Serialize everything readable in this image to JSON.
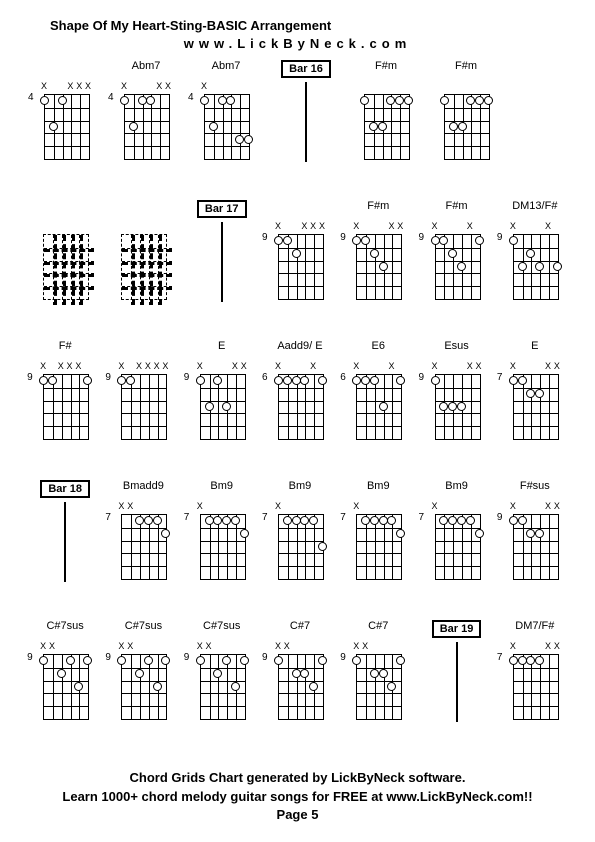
{
  "title": "Shape Of My Heart-Sting-BASIC Arrangement",
  "subtitle": "www.LickByNeck.com",
  "footer_line1": "Chord Grids Chart generated by LickByNeck software.",
  "footer_line2": "Learn 1000+ chord melody guitar songs for FREE at www.LickByNeck.com!!",
  "footer_line3": "Page 5",
  "rows": [
    [
      {
        "type": "chord",
        "label": "",
        "fret": "4",
        "marks": [
          "x",
          "",
          "",
          "x",
          "x",
          "x"
        ],
        "dots": [
          {
            "s": 1,
            "f": 0,
            "o": 1
          },
          {
            "s": 2,
            "f": 3
          },
          {
            "s": 3,
            "f": 0,
            "o": 1
          }
        ]
      },
      {
        "type": "chord",
        "label": "Abm7",
        "fret": "4",
        "marks": [
          "x",
          "",
          "",
          "",
          "x",
          "x"
        ],
        "dots": [
          {
            "s": 1,
            "f": 0,
            "o": 1
          },
          {
            "s": 2,
            "f": 3
          },
          {
            "s": 3,
            "f": 1
          },
          {
            "s": 4,
            "f": 1
          }
        ]
      },
      {
        "type": "chord",
        "label": "Abm7",
        "fret": "4",
        "marks": [
          "x",
          "",
          "",
          "",
          "",
          ""
        ],
        "dots": [
          {
            "s": 1,
            "f": 0,
            "o": 1
          },
          {
            "s": 2,
            "f": 3
          },
          {
            "s": 3,
            "f": 1
          },
          {
            "s": 4,
            "f": 1
          },
          {
            "s": 5,
            "f": 4
          },
          {
            "s": 6,
            "f": 4
          }
        ]
      },
      {
        "type": "bar",
        "label": "Bar 16"
      },
      {
        "type": "chord",
        "label": "F#m",
        "fret": "",
        "marks": [
          "",
          "",
          "",
          "",
          "",
          ""
        ],
        "dots": [
          {
            "s": 1,
            "f": 1
          },
          {
            "s": 2,
            "f": 3
          },
          {
            "s": 3,
            "f": 3
          },
          {
            "s": 4,
            "f": 1
          },
          {
            "s": 5,
            "f": 1
          },
          {
            "s": 6,
            "f": 1
          }
        ]
      },
      {
        "type": "chord",
        "label": "F#m",
        "fret": "",
        "marks": [
          "",
          "",
          "",
          "",
          "",
          ""
        ],
        "dots": [
          {
            "s": 1,
            "f": 1
          },
          {
            "s": 2,
            "f": 3
          },
          {
            "s": 3,
            "f": 3
          },
          {
            "s": 4,
            "f": 1
          },
          {
            "s": 5,
            "f": 1
          },
          {
            "s": 6,
            "f": 1
          }
        ]
      }
    ],
    [
      {
        "type": "dashed",
        "label": "",
        "fret": ""
      },
      {
        "type": "dashed",
        "label": "",
        "fret": ""
      },
      {
        "type": "bar",
        "label": "Bar 17"
      },
      {
        "type": "chord",
        "label": "",
        "fret": "9",
        "marks": [
          "x",
          "",
          "",
          "x",
          "x",
          "x"
        ],
        "dots": [
          {
            "s": 1,
            "f": 0,
            "o": 1
          },
          {
            "s": 2,
            "f": 0,
            "o": 1
          },
          {
            "s": 3,
            "f": 2
          }
        ]
      },
      {
        "type": "chord",
        "label": "F#m",
        "fret": "9",
        "marks": [
          "x",
          "",
          "",
          "",
          "x",
          "x"
        ],
        "dots": [
          {
            "s": 1,
            "f": 0,
            "o": 1
          },
          {
            "s": 2,
            "f": 0,
            "o": 1
          },
          {
            "s": 3,
            "f": 2
          },
          {
            "s": 4,
            "f": 3
          }
        ]
      },
      {
        "type": "chord",
        "label": "F#m",
        "fret": "9",
        "marks": [
          "x",
          "",
          "",
          "",
          "x",
          ""
        ],
        "dots": [
          {
            "s": 1,
            "f": 0,
            "o": 1
          },
          {
            "s": 2,
            "f": 0,
            "o": 1
          },
          {
            "s": 3,
            "f": 2
          },
          {
            "s": 4,
            "f": 3
          },
          {
            "s": 6,
            "f": 1
          }
        ]
      },
      {
        "type": "chord",
        "label": "DM13/F#",
        "fret": "9",
        "marks": [
          "x",
          "",
          "",
          "",
          "x",
          ""
        ],
        "dots": [
          {
            "s": 1,
            "f": 0,
            "o": 1
          },
          {
            "s": 2,
            "f": 3
          },
          {
            "s": 3,
            "f": 2
          },
          {
            "s": 4,
            "f": 3
          },
          {
            "s": 6,
            "f": 3
          }
        ]
      }
    ],
    [
      {
        "type": "chord",
        "label": "F#",
        "fret": "9",
        "marks": [
          "x",
          "",
          "x",
          "x",
          "x",
          ""
        ],
        "dots": [
          {
            "s": 1,
            "f": 0,
            "o": 1
          },
          {
            "s": 2,
            "f": 0,
            "o": 1
          },
          {
            "s": 6,
            "f": 1
          }
        ]
      },
      {
        "type": "chord",
        "label": "",
        "fret": "9",
        "marks": [
          "x",
          "",
          "x",
          "x",
          "x",
          "x"
        ],
        "dots": [
          {
            "s": 1,
            "f": 0,
            "o": 1
          },
          {
            "s": 2,
            "f": 0,
            "o": 1
          }
        ]
      },
      {
        "type": "chord",
        "label": "E",
        "fret": "9",
        "marks": [
          "x",
          "",
          "",
          "",
          "x",
          "x"
        ],
        "dots": [
          {
            "s": 1,
            "f": 0,
            "o": 1
          },
          {
            "s": 2,
            "f": 3
          },
          {
            "s": 3,
            "f": 0,
            "o": 1
          },
          {
            "s": 4,
            "f": 3
          }
        ]
      },
      {
        "type": "chord",
        "label": "Aadd9/ E",
        "fret": "6",
        "marks": [
          "x",
          "",
          "",
          "",
          "x",
          ""
        ],
        "dots": [
          {
            "s": 1,
            "f": 0,
            "o": 1
          },
          {
            "s": 2,
            "f": 1
          },
          {
            "s": 3,
            "f": 1
          },
          {
            "s": 4,
            "f": 1
          },
          {
            "s": 6,
            "f": 1
          }
        ]
      },
      {
        "type": "chord",
        "label": "E6",
        "fret": "6",
        "marks": [
          "x",
          "",
          "",
          "",
          "x",
          ""
        ],
        "dots": [
          {
            "s": 1,
            "f": 0,
            "o": 1
          },
          {
            "s": 2,
            "f": 1
          },
          {
            "s": 3,
            "f": 1
          },
          {
            "s": 4,
            "f": 3
          },
          {
            "s": 6,
            "f": 1
          }
        ]
      },
      {
        "type": "chord",
        "label": "Esus",
        "fret": "9",
        "marks": [
          "x",
          "",
          "",
          "",
          "x",
          "x"
        ],
        "dots": [
          {
            "s": 1,
            "f": 0,
            "o": 1
          },
          {
            "s": 2,
            "f": 3
          },
          {
            "s": 3,
            "f": 3
          },
          {
            "s": 4,
            "f": 3
          }
        ]
      },
      {
        "type": "chord",
        "label": "E",
        "fret": "7",
        "marks": [
          "x",
          "",
          "",
          "",
          "x",
          "x"
        ],
        "dots": [
          {
            "s": 1,
            "f": 0,
            "o": 1
          },
          {
            "s": 2,
            "f": 0,
            "o": 1
          },
          {
            "s": 3,
            "f": 2
          },
          {
            "s": 4,
            "f": 2
          }
        ]
      }
    ],
    [
      {
        "type": "bar",
        "label": "Bar 18"
      },
      {
        "type": "chord",
        "label": "Bmadd9",
        "fret": "7",
        "marks": [
          "x",
          "x",
          "",
          "",
          "",
          ""
        ],
        "dots": [
          {
            "s": 3,
            "f": 0,
            "o": 1
          },
          {
            "s": 4,
            "f": 0,
            "o": 1
          },
          {
            "s": 5,
            "f": 0,
            "o": 1
          },
          {
            "s": 6,
            "f": 2
          }
        ]
      },
      {
        "type": "chord",
        "label": "Bm9",
        "fret": "7",
        "marks": [
          "x",
          "",
          "",
          "",
          "",
          ""
        ],
        "dots": [
          {
            "s": 2,
            "f": 0,
            "o": 1
          },
          {
            "s": 3,
            "f": 0,
            "o": 1
          },
          {
            "s": 4,
            "f": 0,
            "o": 1
          },
          {
            "s": 5,
            "f": 0,
            "o": 1
          },
          {
            "s": 6,
            "f": 2
          }
        ]
      },
      {
        "type": "chord",
        "label": "Bm9",
        "fret": "7",
        "marks": [
          "x",
          "",
          "",
          "",
          "",
          ""
        ],
        "dots": [
          {
            "s": 2,
            "f": 0,
            "o": 1
          },
          {
            "s": 3,
            "f": 0,
            "o": 1
          },
          {
            "s": 4,
            "f": 0,
            "o": 1
          },
          {
            "s": 5,
            "f": 0,
            "o": 1
          },
          {
            "s": 6,
            "f": 3
          }
        ]
      },
      {
        "type": "chord",
        "label": "Bm9",
        "fret": "7",
        "marks": [
          "x",
          "",
          "",
          "",
          "",
          ""
        ],
        "dots": [
          {
            "s": 2,
            "f": 0,
            "o": 1
          },
          {
            "s": 3,
            "f": 0,
            "o": 1
          },
          {
            "s": 4,
            "f": 0,
            "o": 1
          },
          {
            "s": 5,
            "f": 0,
            "o": 1
          },
          {
            "s": 6,
            "f": 2
          }
        ]
      },
      {
        "type": "chord",
        "label": "Bm9",
        "fret": "7",
        "marks": [
          "x",
          "",
          "",
          "",
          "",
          ""
        ],
        "dots": [
          {
            "s": 2,
            "f": 0,
            "o": 1
          },
          {
            "s": 3,
            "f": 0,
            "o": 1
          },
          {
            "s": 4,
            "f": 0,
            "o": 1
          },
          {
            "s": 5,
            "f": 0,
            "o": 1
          },
          {
            "s": 6,
            "f": 2
          }
        ]
      },
      {
        "type": "chord",
        "label": "F#sus",
        "fret": "9",
        "marks": [
          "x",
          "",
          "",
          "",
          "x",
          "x"
        ],
        "dots": [
          {
            "s": 1,
            "f": 0,
            "o": 1
          },
          {
            "s": 2,
            "f": 0,
            "o": 1
          },
          {
            "s": 3,
            "f": 2
          },
          {
            "s": 4,
            "f": 2
          }
        ]
      }
    ],
    [
      {
        "type": "chord",
        "label": "C#7sus",
        "fret": "9",
        "marks": [
          "x",
          "x",
          "",
          "",
          "",
          ""
        ],
        "dots": [
          {
            "s": 1,
            "f": 0,
            "o": 1
          },
          {
            "s": 3,
            "f": 2
          },
          {
            "s": 4,
            "f": 0,
            "o": 1
          },
          {
            "s": 5,
            "f": 3
          },
          {
            "s": 6,
            "f": 0,
            "o": 1
          }
        ]
      },
      {
        "type": "chord",
        "label": "C#7sus",
        "fret": "9",
        "marks": [
          "x",
          "x",
          "",
          "",
          "",
          ""
        ],
        "dots": [
          {
            "s": 1,
            "f": 0,
            "o": 1
          },
          {
            "s": 3,
            "f": 2
          },
          {
            "s": 4,
            "f": 0,
            "o": 1
          },
          {
            "s": 5,
            "f": 3
          },
          {
            "s": 6,
            "f": 0,
            "o": 1
          }
        ]
      },
      {
        "type": "chord",
        "label": "C#7sus",
        "fret": "9",
        "marks": [
          "x",
          "x",
          "",
          "",
          "",
          ""
        ],
        "dots": [
          {
            "s": 1,
            "f": 0,
            "o": 1
          },
          {
            "s": 3,
            "f": 2
          },
          {
            "s": 4,
            "f": 0,
            "o": 1
          },
          {
            "s": 5,
            "f": 3
          },
          {
            "s": 6,
            "f": 0,
            "o": 1
          }
        ]
      },
      {
        "type": "chord",
        "label": "C#7",
        "fret": "9",
        "marks": [
          "x",
          "x",
          "",
          "",
          "",
          ""
        ],
        "dots": [
          {
            "s": 1,
            "f": 0,
            "o": 1
          },
          {
            "s": 3,
            "f": 2
          },
          {
            "s": 4,
            "f": 2
          },
          {
            "s": 5,
            "f": 3
          },
          {
            "s": 6,
            "f": 0,
            "o": 1
          }
        ]
      },
      {
        "type": "chord",
        "label": "C#7",
        "fret": "9",
        "marks": [
          "x",
          "x",
          "",
          "",
          "",
          ""
        ],
        "dots": [
          {
            "s": 1,
            "f": 0,
            "o": 1
          },
          {
            "s": 3,
            "f": 2
          },
          {
            "s": 4,
            "f": 2
          },
          {
            "s": 5,
            "f": 3
          },
          {
            "s": 6,
            "f": 0,
            "o": 1
          }
        ]
      },
      {
        "type": "bar",
        "label": "Bar 19"
      },
      {
        "type": "chord",
        "label": "DM7/F#",
        "fret": "7",
        "marks": [
          "x",
          "",
          "",
          "",
          "x",
          "x"
        ],
        "dots": [
          {
            "s": 1,
            "f": 0,
            "o": 1
          },
          {
            "s": 2,
            "f": 0,
            "o": 1
          },
          {
            "s": 3,
            "f": 0,
            "o": 1
          },
          {
            "s": 4,
            "f": 0,
            "o": 1
          }
        ]
      }
    ]
  ],
  "styling": {
    "background_color": "#ffffff",
    "text_color": "#000000",
    "grid_line_color": "#000000",
    "title_fontsize": 13,
    "chord_label_fontsize": 11,
    "fret_num_fontsize": 10,
    "footer_fontsize": 13,
    "dot_size": 7,
    "fretboard_width": 44,
    "fretboard_height": 64,
    "num_frets": 5,
    "num_strings": 6
  }
}
